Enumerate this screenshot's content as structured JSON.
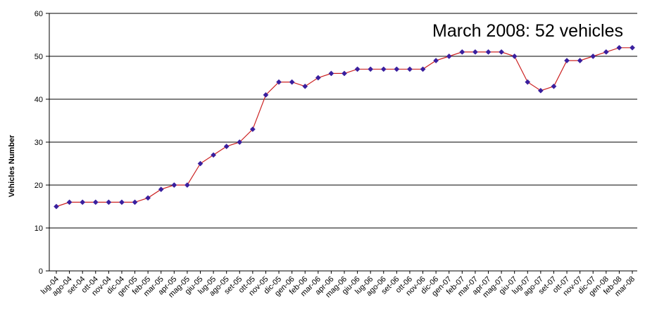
{
  "chart_data": {
    "type": "line",
    "title": "",
    "xlabel": "",
    "ylabel": "Vehicles Number",
    "ylim": [
      0,
      60
    ],
    "yticks": [
      0,
      10,
      20,
      30,
      40,
      50,
      60
    ],
    "grid": true,
    "annotation": "March 2008: 52 vehicles",
    "colors": {
      "line": "#cc2222",
      "marker": "#3a1f9e",
      "grid": "#000000"
    },
    "categories": [
      "lug-04",
      "ago-04",
      "set-04",
      "ott-04",
      "nov-04",
      "dic-04",
      "gen-05",
      "feb-05",
      "mar-05",
      "apr-05",
      "mag-05",
      "giu-05",
      "lug-05",
      "ago-05",
      "set-05",
      "ott-05",
      "nov-05",
      "dic-05",
      "gen-06",
      "feb-06",
      "mar-06",
      "apr-06",
      "mag-06",
      "giu-06",
      "lug-06",
      "ago-06",
      "set-06",
      "ott-06",
      "nov-06",
      "dic-06",
      "gen-07",
      "feb-07",
      "mar-07",
      "apr-07",
      "mag-07",
      "giu-07",
      "lug-07",
      "ago-07",
      "set-07",
      "ott-07",
      "nov-07",
      "dic-07",
      "gen-08",
      "feb-08",
      "mar-08"
    ],
    "values": [
      15,
      16,
      16,
      16,
      16,
      16,
      16,
      17,
      19,
      20,
      20,
      25,
      27,
      29,
      30,
      33,
      41,
      44,
      44,
      43,
      45,
      46,
      46,
      47,
      47,
      47,
      47,
      47,
      47,
      49,
      50,
      51,
      51,
      51,
      51,
      50,
      44,
      42,
      43,
      49,
      49,
      50,
      51,
      52,
      52
    ]
  }
}
